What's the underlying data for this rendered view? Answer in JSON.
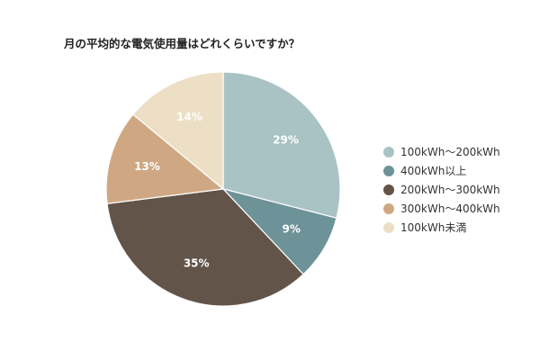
{
  "chart_data": {
    "type": "pie",
    "title": "月の平均的な電気使用量はどれくらいですか？",
    "categories": [
      "100kWh～200kWh",
      "400kWh以上",
      "200kWh～300kWh",
      "300kWh～400kWh",
      "100kWh未満"
    ],
    "values": [
      29,
      9,
      35,
      13,
      14
    ],
    "labels": [
      "29%",
      "9%",
      "35%",
      "13%",
      "14%"
    ],
    "colors": [
      "#a9c3c4",
      "#6d9297",
      "#635449",
      "#cfa883",
      "#ecdfc5"
    ],
    "legend_position": "right",
    "start_angle": "12 o'clock",
    "direction": "clockwise"
  }
}
